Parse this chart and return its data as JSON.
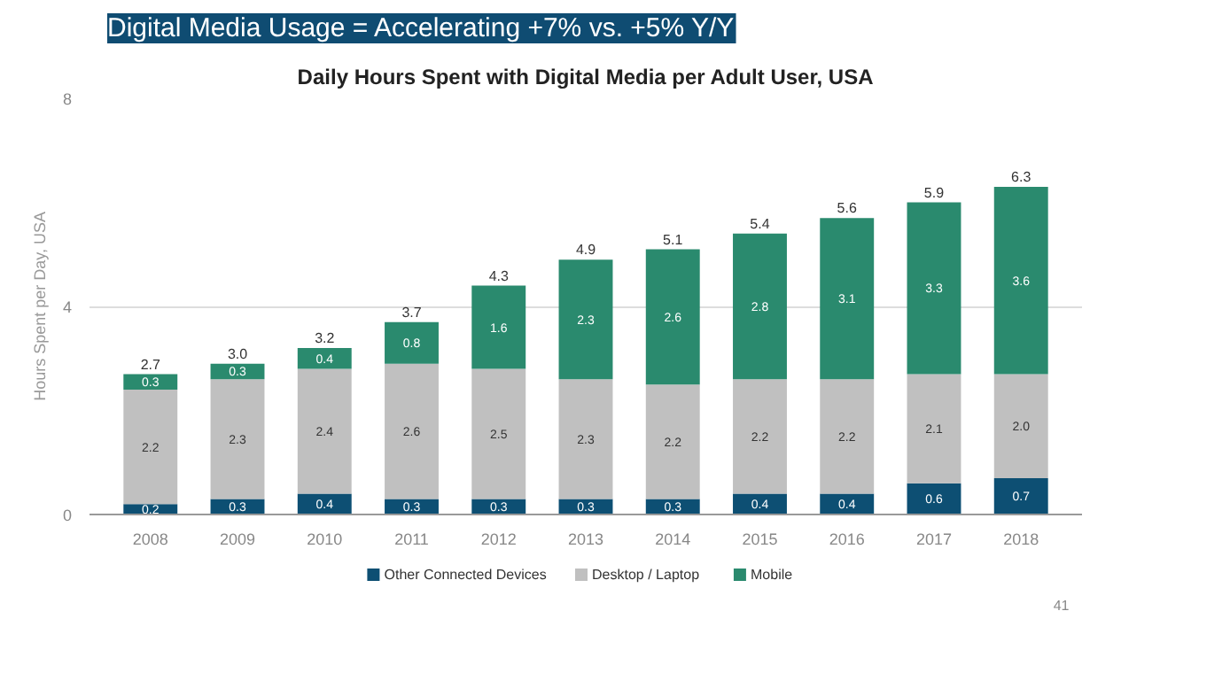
{
  "chart_data": {
    "type": "bar",
    "stacked": true,
    "title": "Digital Media Usage = Accelerating +7% vs. +5% Y/Y",
    "subtitle": "Daily Hours Spent with Digital Media per Adult User, USA",
    "ylabel": "Hours Spent per Day, USA",
    "categories": [
      "2008",
      "2009",
      "2010",
      "2011",
      "2012",
      "2013",
      "2014",
      "2015",
      "2016",
      "2017",
      "2018"
    ],
    "series": [
      {
        "name": "Other Connected Devices",
        "color": "#0d4f73",
        "values": [
          0.2,
          0.3,
          0.4,
          0.3,
          0.3,
          0.3,
          0.3,
          0.4,
          0.4,
          0.6,
          0.7
        ],
        "value_labels": [
          "0.2",
          "0.3",
          "0.4",
          "0.3",
          "0.3",
          "0.3",
          "0.3",
          "0.4",
          "0.4",
          "0.6",
          "0.7"
        ]
      },
      {
        "name": "Desktop / Laptop",
        "color": "#c0c0c0",
        "values": [
          2.2,
          2.3,
          2.4,
          2.6,
          2.5,
          2.3,
          2.2,
          2.2,
          2.2,
          2.1,
          2.0
        ],
        "value_labels": [
          "2.2",
          "2.3",
          "2.4",
          "2.6",
          "2.5",
          "2.3",
          "2.2",
          "2.2",
          "2.2",
          "2.1",
          "2.0"
        ]
      },
      {
        "name": "Mobile",
        "color": "#2a8a6e",
        "values": [
          0.3,
          0.3,
          0.4,
          0.8,
          1.6,
          2.3,
          2.6,
          2.8,
          3.1,
          3.3,
          3.6
        ],
        "value_labels": [
          "0.3",
          "0.3",
          "0.4",
          "0.8",
          "1.6",
          "2.3",
          "2.6",
          "2.8",
          "3.1",
          "3.3",
          "3.6"
        ]
      }
    ],
    "totals": [
      "2.7",
      "3.0",
      "3.2",
      "3.7",
      "4.3",
      "4.9",
      "5.1",
      "5.4",
      "5.6",
      "5.9",
      "6.3"
    ],
    "ylim": [
      0,
      8
    ],
    "yticks": [
      0,
      4,
      8
    ],
    "grid": "y",
    "legend": "bottom",
    "annotations": [
      "41"
    ]
  }
}
